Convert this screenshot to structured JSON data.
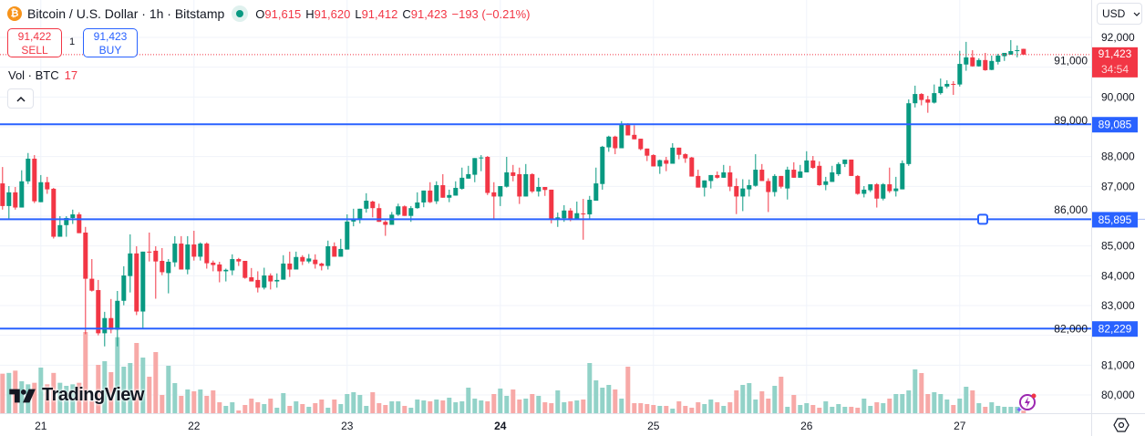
{
  "header": {
    "symbol_icon": "bitcoin-icon",
    "title": "Bitcoin / U.S. Dollar · 1h · Bitstamp",
    "market_status_icon": "market-open-dot-icon",
    "ohlc": {
      "o_label": "O",
      "o": "91,615",
      "h_label": "H",
      "h": "91,620",
      "l_label": "L",
      "l": "91,412",
      "c_label": "C",
      "c": "91,423",
      "change": "−193 (−0.21%)"
    }
  },
  "trade": {
    "sell_price": "91,422",
    "sell_label": "SELL",
    "spread": "1",
    "buy_price": "91,423",
    "buy_label": "BUY"
  },
  "volume_legend": {
    "label": "Vol · BTC",
    "value": "17"
  },
  "collapse_icon": "chevron-up-icon",
  "currency": {
    "selected": "USD",
    "icon": "chevron-down-icon"
  },
  "price_badge": {
    "price": "91,423",
    "countdown": "34:54"
  },
  "logo": "TradingView",
  "colors": {
    "up": "#089981",
    "down": "#f23645",
    "line": "#2962ff",
    "up_vol": "#92d2c8",
    "down_vol": "#f7a9a7",
    "grid": "#f0f3fa"
  },
  "chart_data": {
    "type": "candlestick",
    "interval": "1h",
    "ylim": [
      79500,
      92500
    ],
    "grid": true,
    "y_ticks": [
      "92,000",
      "91,000",
      "90,000",
      "89,000",
      "88,000",
      "87,000",
      "86,000",
      "85,000",
      "84,000",
      "83,000",
      "82,000",
      "81,000",
      "80,000"
    ],
    "y_tick_values": [
      92000,
      91000,
      90000,
      89000,
      88000,
      87000,
      86000,
      85000,
      84000,
      83000,
      82000,
      81000,
      80000
    ],
    "x_ticks": [
      {
        "label": "21",
        "index": 6,
        "bold": false
      },
      {
        "label": "22",
        "index": 30,
        "bold": false
      },
      {
        "label": "23",
        "index": 54,
        "bold": false
      },
      {
        "label": "24",
        "index": 78,
        "bold": true
      },
      {
        "label": "25",
        "index": 102,
        "bold": false
      },
      {
        "label": "26",
        "index": 126,
        "bold": false
      },
      {
        "label": "27",
        "index": 150,
        "bold": false
      }
    ],
    "horizontal_lines": [
      {
        "value": 89085,
        "label": "89,085"
      },
      {
        "value": 85895,
        "label": "85,895",
        "selected": true
      },
      {
        "value": 82229,
        "label": "82,229"
      }
    ],
    "last_price": 91423,
    "candles_ohlc": [
      [
        87100,
        87650,
        86220,
        86340
      ],
      [
        86340,
        87010,
        85910,
        86800
      ],
      [
        86800,
        86980,
        86220,
        86290
      ],
      [
        86290,
        87540,
        86290,
        87170
      ],
      [
        87170,
        88120,
        87080,
        87930
      ],
      [
        87930,
        88050,
        86440,
        86500
      ],
      [
        86470,
        87380,
        86470,
        87140
      ],
      [
        87140,
        87320,
        86750,
        86900
      ],
      [
        86920,
        86950,
        85250,
        85310
      ],
      [
        85310,
        86000,
        85310,
        85700
      ],
      [
        85700,
        86000,
        85310,
        85940
      ],
      [
        85940,
        86220,
        85740,
        86060
      ],
      [
        86060,
        86130,
        85430,
        85430
      ],
      [
        85450,
        85640,
        82040,
        83900
      ],
      [
        83900,
        84560,
        83470,
        83500
      ],
      [
        83520,
        83860,
        82000,
        82070
      ],
      [
        82070,
        82790,
        81630,
        82580
      ],
      [
        82580,
        83220,
        82070,
        82190
      ],
      [
        82190,
        83490,
        81630,
        83160
      ],
      [
        83160,
        84320,
        83010,
        84010
      ],
      [
        83990,
        85390,
        83440,
        84750
      ],
      [
        84750,
        84990,
        82680,
        82800
      ],
      [
        82800,
        84810,
        82240,
        84810
      ],
      [
        84810,
        85450,
        84480,
        84790
      ],
      [
        84840,
        84990,
        83230,
        84480
      ],
      [
        84500,
        84930,
        84020,
        84120
      ],
      [
        84090,
        84560,
        83410,
        84470
      ],
      [
        84450,
        85330,
        84300,
        85080
      ],
      [
        85080,
        85330,
        84210,
        84210
      ],
      [
        84210,
        85330,
        84050,
        85050
      ],
      [
        85050,
        85510,
        84510,
        84640
      ],
      [
        84640,
        85120,
        84510,
        85080
      ],
      [
        85080,
        85120,
        84240,
        84420
      ],
      [
        84440,
        84510,
        84150,
        84360
      ],
      [
        84380,
        84470,
        83780,
        84150
      ],
      [
        84150,
        84240,
        83810,
        84200
      ],
      [
        84180,
        84720,
        84020,
        84560
      ],
      [
        84560,
        84600,
        84330,
        84480
      ],
      [
        84500,
        84500,
        83900,
        83930
      ],
      [
        83950,
        84260,
        83810,
        83810
      ],
      [
        83860,
        84150,
        83440,
        83600
      ],
      [
        83600,
        84270,
        83540,
        84010
      ],
      [
        84010,
        84080,
        83540,
        83810
      ],
      [
        83810,
        84080,
        83600,
        83860
      ],
      [
        83870,
        84690,
        83870,
        84410
      ],
      [
        84410,
        84810,
        83960,
        84210
      ],
      [
        84210,
        84810,
        84210,
        84630
      ],
      [
        84630,
        84690,
        84360,
        84480
      ],
      [
        84480,
        84730,
        84420,
        84580
      ],
      [
        84540,
        84720,
        84240,
        84390
      ],
      [
        84410,
        84440,
        84180,
        84330
      ],
      [
        84330,
        85180,
        84210,
        84990
      ],
      [
        84990,
        85120,
        84640,
        84640
      ],
      [
        84640,
        85240,
        84640,
        84900
      ],
      [
        84880,
        86060,
        84880,
        85820
      ],
      [
        85820,
        86250,
        85660,
        85890
      ],
      [
        85890,
        86250,
        85760,
        86250
      ],
      [
        86250,
        86770,
        86120,
        86520
      ],
      [
        86490,
        86520,
        85960,
        86270
      ],
      [
        86270,
        86420,
        85810,
        85810
      ],
      [
        85810,
        85860,
        85340,
        85710
      ],
      [
        85710,
        86140,
        85710,
        86050
      ],
      [
        86050,
        86420,
        86010,
        86330
      ],
      [
        86330,
        86360,
        86010,
        86010
      ],
      [
        86010,
        86340,
        85810,
        86270
      ],
      [
        86270,
        86800,
        86250,
        86460
      ],
      [
        86460,
        86860,
        86300,
        86860
      ],
      [
        86860,
        87140,
        86440,
        86470
      ],
      [
        86500,
        87170,
        86410,
        87040
      ],
      [
        87040,
        87410,
        86620,
        86620
      ],
      [
        86620,
        86890,
        86470,
        86710
      ],
      [
        86690,
        87170,
        86690,
        86950
      ],
      [
        86920,
        87630,
        86890,
        87290
      ],
      [
        87260,
        87690,
        87260,
        87410
      ],
      [
        87390,
        87950,
        87140,
        87950
      ],
      [
        87950,
        88050,
        87510,
        87970
      ],
      [
        87990,
        88020,
        86710,
        86780
      ],
      [
        86800,
        87140,
        85910,
        86660
      ],
      [
        86660,
        87010,
        86340,
        87010
      ],
      [
        86990,
        87990,
        86960,
        87470
      ],
      [
        87470,
        87720,
        87170,
        87350
      ],
      [
        87410,
        87630,
        86410,
        86660
      ],
      [
        86660,
        87750,
        86660,
        87410
      ],
      [
        87410,
        87440,
        86780,
        86830
      ],
      [
        86830,
        87290,
        86660,
        86980
      ],
      [
        86980,
        86980,
        86680,
        86880
      ],
      [
        86890,
        86890,
        85760,
        85910
      ],
      [
        85910,
        86120,
        85640,
        85960
      ],
      [
        85930,
        86370,
        85810,
        86190
      ],
      [
        86190,
        86270,
        85830,
        85910
      ],
      [
        85910,
        86490,
        85910,
        86100
      ],
      [
        86090,
        86580,
        85210,
        86080
      ],
      [
        86060,
        86680,
        85910,
        86550
      ],
      [
        86520,
        87630,
        86520,
        87100
      ],
      [
        87080,
        88360,
        86890,
        88330
      ],
      [
        88310,
        88700,
        88160,
        88670
      ],
      [
        88670,
        88700,
        88080,
        88280
      ],
      [
        88280,
        89190,
        88280,
        89090
      ],
      [
        89070,
        89120,
        88710,
        88710
      ],
      [
        88730,
        89050,
        88580,
        88580
      ],
      [
        88600,
        88600,
        88210,
        88250
      ],
      [
        88270,
        88270,
        87850,
        88030
      ],
      [
        88050,
        88080,
        87670,
        87670
      ],
      [
        87670,
        87900,
        87420,
        87880
      ],
      [
        87880,
        87990,
        87510,
        87760
      ],
      [
        87760,
        88450,
        87760,
        88300
      ],
      [
        88300,
        88300,
        87910,
        88060
      ],
      [
        88080,
        88110,
        87790,
        87940
      ],
      [
        87970,
        87990,
        87330,
        87330
      ],
      [
        87350,
        87560,
        86960,
        86960
      ],
      [
        86960,
        87200,
        86660,
        87200
      ],
      [
        87180,
        87380,
        86930,
        87380
      ],
      [
        87380,
        87500,
        87260,
        87290
      ],
      [
        87290,
        87720,
        87290,
        87470
      ],
      [
        87470,
        87690,
        86840,
        86990
      ],
      [
        87010,
        87270,
        86070,
        86660
      ],
      [
        86660,
        87240,
        86170,
        86930
      ],
      [
        86900,
        87230,
        86660,
        87040
      ],
      [
        87020,
        88080,
        86990,
        87560
      ],
      [
        87560,
        87750,
        87180,
        87180
      ],
      [
        87180,
        87270,
        86140,
        86810
      ],
      [
        86810,
        87410,
        86660,
        87350
      ],
      [
        87350,
        87350,
        86930,
        86990
      ],
      [
        86930,
        87660,
        86560,
        87560
      ],
      [
        87560,
        87810,
        87290,
        87290
      ],
      [
        87290,
        87720,
        87290,
        87500
      ],
      [
        87470,
        88180,
        87470,
        87870
      ],
      [
        87870,
        88020,
        87590,
        87620
      ],
      [
        87690,
        87840,
        87020,
        87040
      ],
      [
        87050,
        87320,
        86870,
        87170
      ],
      [
        87150,
        87690,
        87150,
        87470
      ],
      [
        87410,
        87810,
        87350,
        87750
      ],
      [
        87750,
        87900,
        87650,
        87900
      ],
      [
        87900,
        87900,
        87350,
        87350
      ],
      [
        87350,
        87380,
        86720,
        86750
      ],
      [
        86750,
        87010,
        86630,
        86890
      ],
      [
        86870,
        87070,
        86810,
        87070
      ],
      [
        87070,
        87110,
        86290,
        86590
      ],
      [
        86590,
        87110,
        86530,
        87070
      ],
      [
        87070,
        87630,
        86780,
        86840
      ],
      [
        86840,
        87320,
        86660,
        86930
      ],
      [
        86900,
        87870,
        86900,
        87780
      ],
      [
        87750,
        89920,
        87690,
        89790
      ],
      [
        89790,
        90380,
        89650,
        90100
      ],
      [
        90100,
        90130,
        89720,
        89900
      ],
      [
        89920,
        90040,
        89470,
        89810
      ],
      [
        89810,
        90420,
        89780,
        90130
      ],
      [
        90130,
        90620,
        90080,
        90350
      ],
      [
        90350,
        90560,
        90290,
        90440
      ],
      [
        90440,
        90530,
        90070,
        90420
      ],
      [
        90420,
        91550,
        90350,
        91110
      ],
      [
        91090,
        91850,
        90880,
        91330
      ],
      [
        91330,
        91570,
        91020,
        91030
      ],
      [
        91030,
        91300,
        91020,
        91240
      ],
      [
        91240,
        91480,
        90880,
        90900
      ],
      [
        90910,
        91390,
        90900,
        91210
      ],
      [
        91180,
        91450,
        91090,
        91390
      ],
      [
        91370,
        91480,
        91210,
        91480
      ],
      [
        91420,
        91910,
        91420,
        91540
      ],
      [
        91540,
        91730,
        91330,
        91570
      ],
      [
        91615,
        91620,
        91412,
        91423
      ]
    ],
    "volume_btc": [
      260,
      265,
      280,
      210,
      190,
      200,
      300,
      190,
      265,
      200,
      180,
      190,
      200,
      534,
      78,
      318,
      342,
      270,
      500,
      306,
      330,
      462,
      366,
      240,
      402,
      120,
      312,
      198,
      114,
      156,
      144,
      156,
      114,
      150,
      72,
      48,
      72,
      18,
      54,
      96,
      72,
      60,
      96,
      36,
      132,
      48,
      78,
      60,
      42,
      66,
      90,
      36,
      90,
      60,
      126,
      138,
      120,
      48,
      138,
      66,
      54,
      78,
      78,
      48,
      36,
      90,
      84,
      78,
      90,
      84,
      102,
      72,
      78,
      168,
      96,
      84,
      78,
      126,
      162,
      114,
      156,
      90,
      96,
      126,
      114,
      72,
      66,
      150,
      72,
      78,
      84,
      90,
      330,
      216,
      168,
      186,
      156,
      96,
      306,
      66,
      66,
      60,
      54,
      48,
      48,
      30,
      78,
      48,
      36,
      72,
      60,
      90,
      72,
      48,
      72,
      150,
      186,
      198,
      90,
      144,
      96,
      180,
      240,
      42,
      120,
      54,
      66,
      54,
      36,
      78,
      42,
      60,
      42,
      42,
      36,
      96,
      48,
      72,
      66,
      96,
      126,
      126,
      150,
      288,
      264,
      126,
      138,
      126,
      90,
      54,
      96,
      174,
      150,
      66,
      42,
      72,
      48,
      42,
      42,
      42,
      17
    ]
  }
}
